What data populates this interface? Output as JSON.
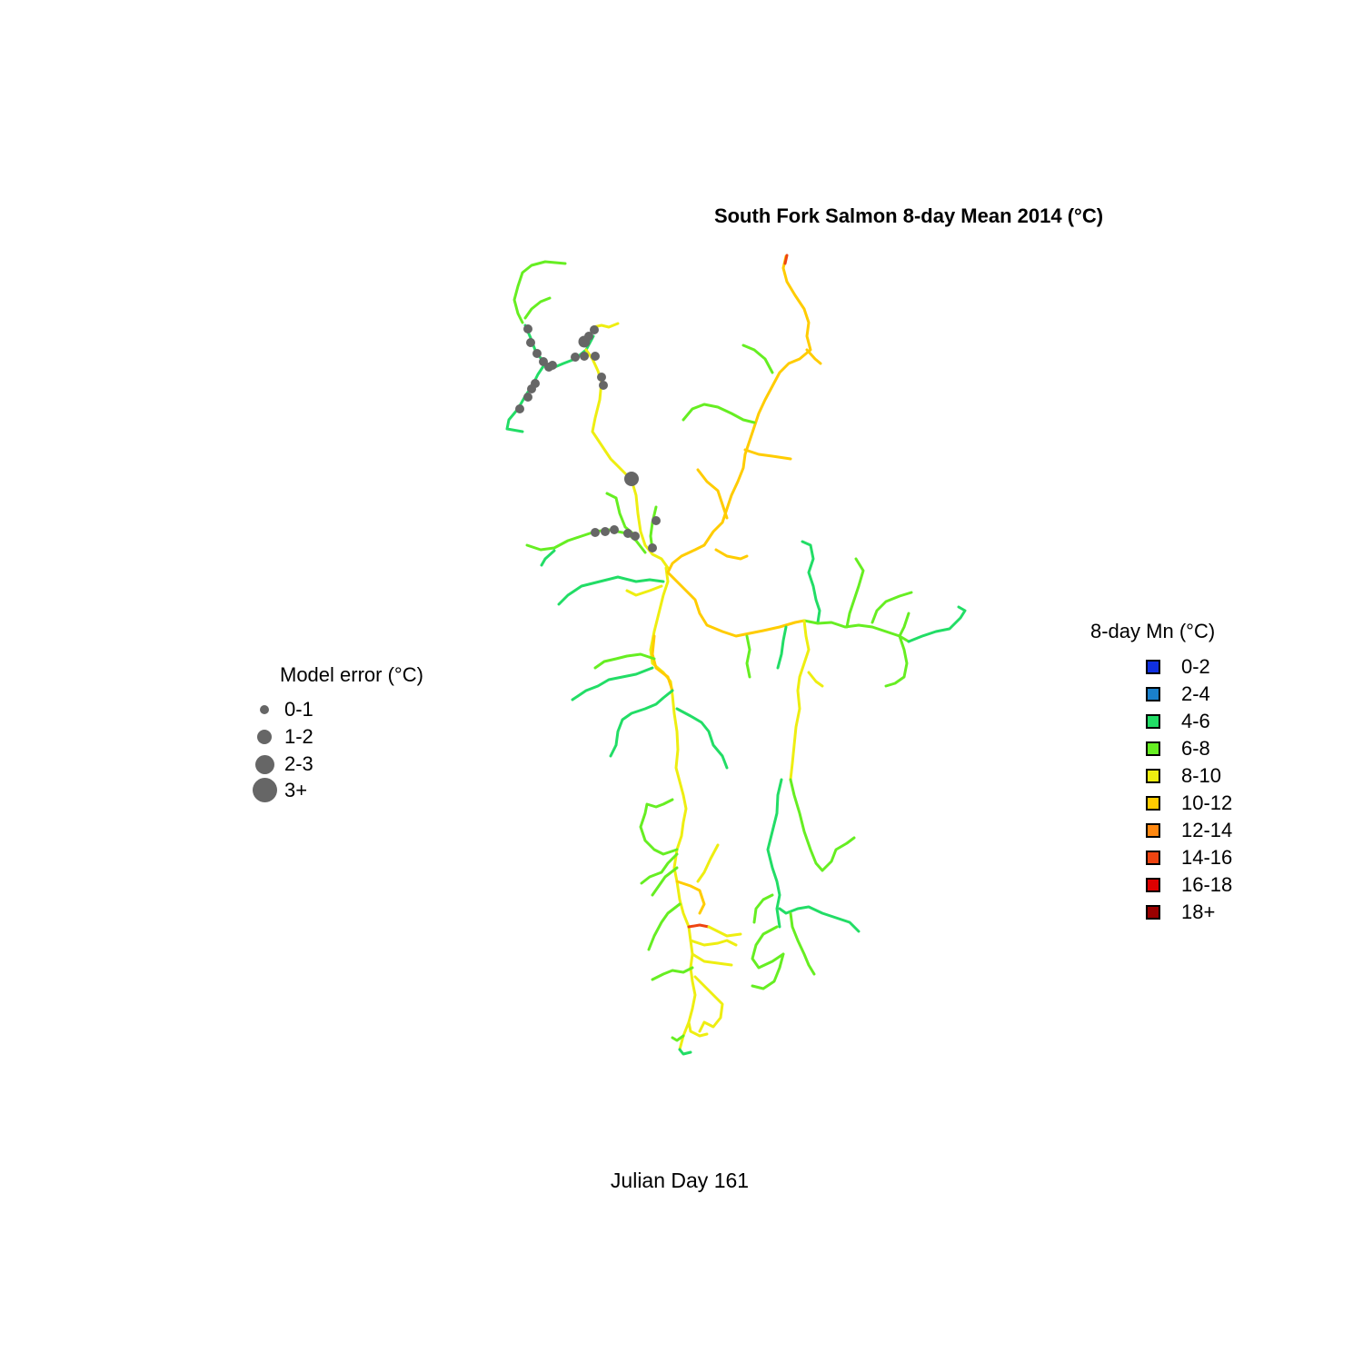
{
  "title": "South Fork Salmon 8-day Mean 2014 (°C)",
  "subtitle": "Julian Day 161",
  "temp_legend": {
    "title": "8-day Mn (°C)",
    "items": [
      {
        "label": "0-2",
        "color": "#1030e0"
      },
      {
        "label": "2-4",
        "color": "#1a80cc"
      },
      {
        "label": "4-6",
        "color": "#22dd66"
      },
      {
        "label": "6-8",
        "color": "#66ee22"
      },
      {
        "label": "8-10",
        "color": "#eeee11"
      },
      {
        "label": "10-12",
        "color": "#ffcc00"
      },
      {
        "label": "12-14",
        "color": "#ff8811"
      },
      {
        "label": "14-16",
        "color": "#ee4411"
      },
      {
        "label": "16-18",
        "color": "#dd0000"
      },
      {
        "label": "18+",
        "color": "#990000"
      }
    ]
  },
  "error_legend": {
    "title": "Model error (°C)",
    "items": [
      {
        "label": "0-1"
      },
      {
        "label": "1-2"
      },
      {
        "label": "2-3"
      },
      {
        "label": "3+"
      }
    ],
    "dot_color": "#666666"
  }
}
